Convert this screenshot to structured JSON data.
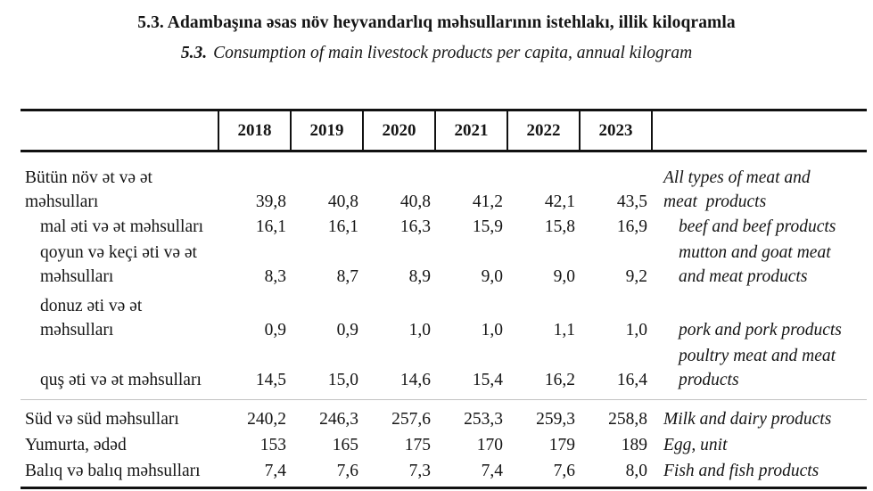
{
  "title": {
    "az": "5.3. Adambaşına əsas növ heyvandarlıq məhsullarının istehlakı, illik kiloqramla",
    "en_number": "5.3.",
    "en": "Consumption of main livestock products per capita, annual kilogram"
  },
  "table": {
    "years": [
      "2018",
      "2019",
      "2020",
      "2021",
      "2022",
      "2023"
    ],
    "rows": [
      {
        "az": "Bütün növ ət və ət\nməhsulları",
        "values": [
          "39,8",
          "40,8",
          "40,8",
          "41,2",
          "42,1",
          "43,5"
        ],
        "en": "All types of meat and\nmeat  products"
      },
      {
        "az": "mal əti və ət məhsulları",
        "values": [
          "16,1",
          "16,1",
          "16,3",
          "15,9",
          "15,8",
          "16,9"
        ],
        "en": "beef and beef products"
      },
      {
        "az": "qoyun və keçi əti və ət\nməhsulları",
        "values": [
          "8,3",
          "8,7",
          "8,9",
          "9,0",
          "9,0",
          "9,2"
        ],
        "en": "mutton and goat meat\nand meat products"
      },
      {
        "az": "donuz əti və ət\nməhsulları",
        "values": [
          "0,9",
          "0,9",
          "1,0",
          "1,0",
          "1,1",
          "1,0"
        ],
        "en": "pork and pork products"
      },
      {
        "az": "quş əti və ət məhsulları",
        "values": [
          "14,5",
          "15,0",
          "14,6",
          "15,4",
          "16,2",
          "16,4"
        ],
        "en": "poultry meat and meat\nproducts"
      },
      {
        "az": "Süd və süd məhsulları",
        "values": [
          "240,2",
          "246,3",
          "257,6",
          "253,3",
          "259,3",
          "258,8"
        ],
        "en": "Milk and dairy products"
      },
      {
        "az": "Yumurta, ədəd",
        "values": [
          "153",
          "165",
          "175",
          "170",
          "179",
          "189"
        ],
        "en": "Egg, unit"
      },
      {
        "az": "Balıq və balıq məhsulları",
        "values": [
          "7,4",
          "7,6",
          "7,3",
          "7,4",
          "7,6",
          "8,0"
        ],
        "en": "Fish and fish products"
      }
    ]
  }
}
